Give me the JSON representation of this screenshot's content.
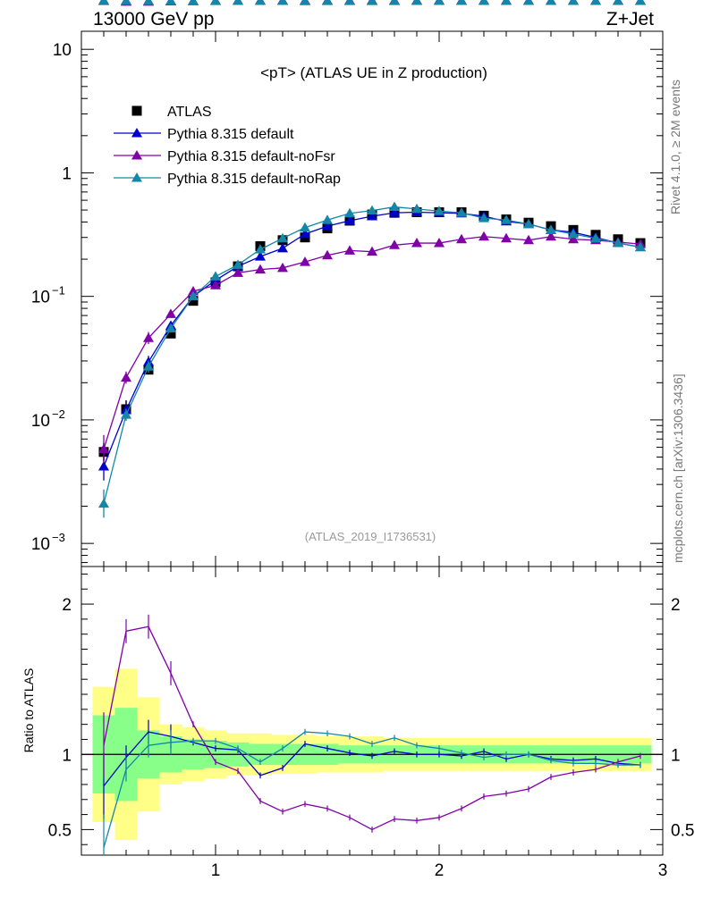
{
  "header": {
    "energy_label": "13000 GeV pp",
    "process_label": "Z+Jet",
    "side_label_top": "Rivet 4.1.0, ≥ 2M events",
    "side_label_bottom": "mcplots.cern.ch [arXiv:1306.3436]"
  },
  "chart_data": [
    {
      "type": "line",
      "yscale": "log",
      "title": "<pT> (ATLAS UE in Z production)",
      "analysis_id": "(ATLAS_2019_I1736531)",
      "xlabel": "",
      "ylabel": "",
      "xlim": [
        0.4,
        3.0
      ],
      "ylim": [
        0.00065,
        14
      ],
      "y_ticks": [
        {
          "value": 10,
          "label": "10"
        },
        {
          "value": 1,
          "label": "1"
        },
        {
          "value": 0.1,
          "label": "10",
          "exp": "−1"
        },
        {
          "value": 0.01,
          "label": "10",
          "exp": "−2"
        },
        {
          "value": 0.001,
          "label": "10",
          "exp": "−3"
        }
      ],
      "x": [
        0.5,
        0.6,
        0.7,
        0.8,
        0.9,
        1.0,
        1.1,
        1.2,
        1.3,
        1.4,
        1.5,
        1.6,
        1.7,
        1.8,
        1.9,
        2.0,
        2.1,
        2.2,
        2.3,
        2.4,
        2.5,
        2.6,
        2.7,
        2.8,
        2.9
      ],
      "series": [
        {
          "name": "ATLAS",
          "color": "#000000",
          "marker": "square",
          "values": [
            0.0055,
            0.0122,
            0.0255,
            0.05,
            0.092,
            0.13,
            0.175,
            0.255,
            0.285,
            0.3,
            0.355,
            0.41,
            0.46,
            0.475,
            0.48,
            0.48,
            0.48,
            0.45,
            0.42,
            0.395,
            0.37,
            0.345,
            0.315,
            0.29,
            0.27
          ]
        },
        {
          "name": "Pythia 8.315 default",
          "color": "#0000cc",
          "marker": "triangle",
          "values": [
            0.0042,
            0.012,
            0.0295,
            0.058,
            0.1,
            0.135,
            0.175,
            0.21,
            0.245,
            0.32,
            0.37,
            0.41,
            0.445,
            0.475,
            0.48,
            0.475,
            0.47,
            0.445,
            0.405,
            0.385,
            0.345,
            0.33,
            0.3,
            0.27,
            0.25
          ]
        },
        {
          "name": "Pythia 8.315 default-noFsr",
          "color": "#8000a8",
          "marker": "triangle",
          "values": [
            0.0058,
            0.022,
            0.046,
            0.072,
            0.11,
            0.123,
            0.155,
            0.165,
            0.17,
            0.19,
            0.215,
            0.235,
            0.23,
            0.26,
            0.27,
            0.27,
            0.29,
            0.305,
            0.295,
            0.285,
            0.305,
            0.29,
            0.285,
            0.275,
            0.265
          ]
        },
        {
          "name": "Pythia 8.315 default-noRap",
          "color": "#1486a8",
          "marker": "triangle",
          "values": [
            0.0021,
            0.011,
            0.027,
            0.055,
            0.1,
            0.145,
            0.18,
            0.24,
            0.295,
            0.36,
            0.415,
            0.47,
            0.495,
            0.53,
            0.51,
            0.49,
            0.475,
            0.43,
            0.415,
            0.385,
            0.345,
            0.32,
            0.295,
            0.27,
            0.25
          ]
        }
      ],
      "legend": "top-left"
    },
    {
      "type": "line",
      "ylabel": "Ratio to ATLAS",
      "xlim": [
        0.4,
        3.0
      ],
      "ylim": [
        0.33,
        2.25
      ],
      "x_ticks": [
        1,
        2,
        3
      ],
      "y_ticks": [
        0.5,
        1,
        2
      ],
      "x": [
        0.5,
        0.6,
        0.7,
        0.8,
        0.9,
        1.0,
        1.1,
        1.2,
        1.3,
        1.4,
        1.5,
        1.6,
        1.7,
        1.8,
        1.9,
        2.0,
        2.1,
        2.2,
        2.3,
        2.4,
        2.5,
        2.6,
        2.7,
        2.8,
        2.9
      ],
      "bands": {
        "yellow_halfwidth": [
          0.45,
          0.57,
          0.38,
          0.2,
          0.18,
          0.16,
          0.14,
          0.14,
          0.13,
          0.13,
          0.12,
          0.12,
          0.12,
          0.11,
          0.11,
          0.11,
          0.11,
          0.11,
          0.11,
          0.11,
          0.11,
          0.11,
          0.11,
          0.11,
          0.11
        ],
        "green_halfwidth": [
          0.26,
          0.31,
          0.16,
          0.12,
          0.1,
          0.09,
          0.08,
          0.07,
          0.07,
          0.07,
          0.07,
          0.06,
          0.06,
          0.06,
          0.06,
          0.06,
          0.06,
          0.06,
          0.06,
          0.06,
          0.06,
          0.06,
          0.06,
          0.06,
          0.06
        ]
      },
      "series": [
        {
          "name": "Pythia 8.315 default",
          "color": "#0000cc",
          "values": [
            0.79,
            0.98,
            1.15,
            1.12,
            1.08,
            1.04,
            1.03,
            0.86,
            0.91,
            1.07,
            1.04,
            1.01,
            0.99,
            1.02,
            1.0,
            1.0,
            0.99,
            1.02,
            0.97,
            1.0,
            0.97,
            0.96,
            0.97,
            0.94,
            0.93
          ]
        },
        {
          "name": "Pythia 8.315 default-noFsr",
          "color": "#8000a8",
          "values": [
            1.06,
            1.82,
            1.85,
            1.54,
            1.2,
            0.95,
            0.89,
            0.69,
            0.62,
            0.67,
            0.64,
            0.58,
            0.5,
            0.57,
            0.56,
            0.58,
            0.64,
            0.72,
            0.74,
            0.77,
            0.85,
            0.88,
            0.9,
            0.95,
            0.99
          ]
        },
        {
          "name": "Pythia 8.315 default-noRap",
          "color": "#1486a8",
          "values": [
            0.38,
            0.9,
            1.06,
            1.08,
            1.09,
            1.09,
            1.04,
            0.95,
            1.04,
            1.15,
            1.14,
            1.12,
            1.07,
            1.11,
            1.06,
            1.04,
            1.01,
            0.98,
            1.0,
            1.0,
            0.96,
            0.94,
            0.94,
            0.93,
            0.93
          ]
        }
      ]
    }
  ]
}
